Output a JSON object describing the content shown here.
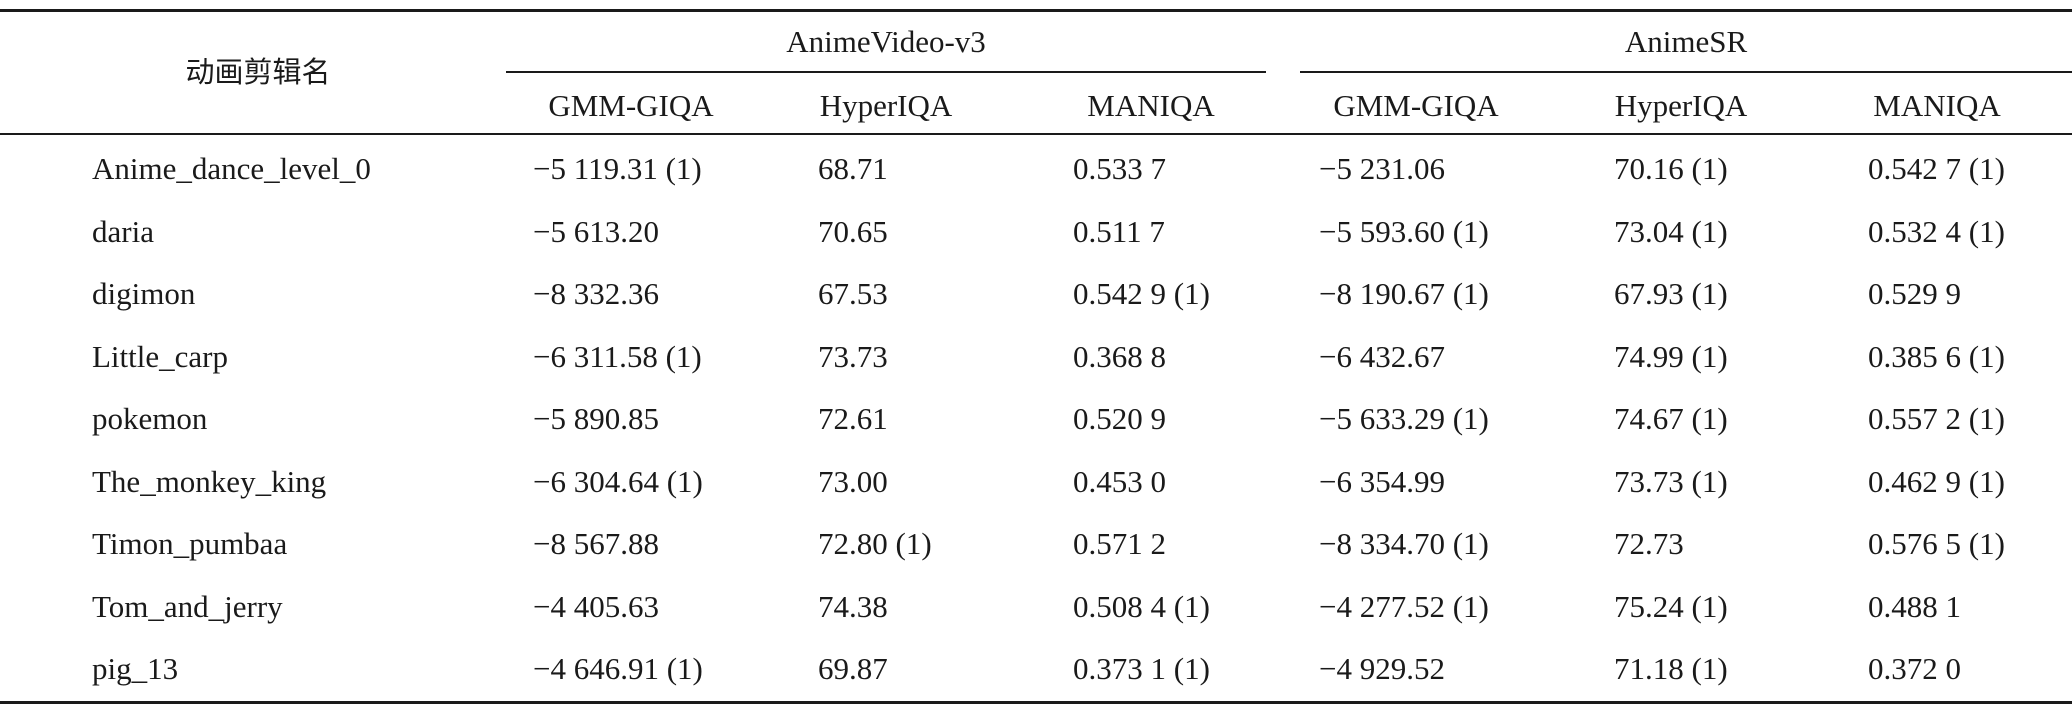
{
  "table": {
    "corner_label": "动画剪辑名",
    "groups": [
      {
        "label": "AnimeVideo-v3",
        "columns": [
          "GMM-GIQA",
          "HyperIQA",
          "MANIQA"
        ]
      },
      {
        "label": "AnimeSR",
        "columns": [
          "GMM-GIQA",
          "HyperIQA",
          "MANIQA"
        ]
      }
    ],
    "rows": [
      {
        "name": "Anime_dance_level_0",
        "values": [
          "−5 119.31 (1)",
          "68.71",
          "0.533 7",
          "−5 231.06",
          "70.16 (1)",
          "0.542 7 (1)"
        ]
      },
      {
        "name": "daria",
        "values": [
          "−5 613.20",
          "70.65",
          "0.511 7",
          "−5 593.60 (1)",
          "73.04 (1)",
          "0.532 4 (1)"
        ]
      },
      {
        "name": "digimon",
        "values": [
          "−8 332.36",
          "67.53",
          "0.542 9 (1)",
          "−8 190.67 (1)",
          "67.93 (1)",
          "0.529 9"
        ]
      },
      {
        "name": "Little_carp",
        "values": [
          "−6 311.58 (1)",
          "73.73",
          "0.368 8",
          "−6 432.67",
          "74.99 (1)",
          "0.385 6 (1)"
        ]
      },
      {
        "name": "pokemon",
        "values": [
          "−5 890.85",
          "72.61",
          "0.520 9",
          "−5 633.29 (1)",
          "74.67 (1)",
          "0.557 2 (1)"
        ]
      },
      {
        "name": "The_monkey_king",
        "values": [
          "−6 304.64 (1)",
          "73.00",
          "0.453 0",
          "−6 354.99",
          "73.73 (1)",
          "0.462 9 (1)"
        ]
      },
      {
        "name": "Timon_pumbaa",
        "values": [
          "−8 567.88",
          "72.80 (1)",
          "0.571 2",
          "−8 334.70 (1)",
          "72.73",
          "0.576 5 (1)"
        ]
      },
      {
        "name": "Tom_and_jerry",
        "values": [
          "−4 405.63",
          "74.38",
          "0.508 4 (1)",
          "−4 277.52 (1)",
          "75.24 (1)",
          "0.488 1"
        ]
      },
      {
        "name": "pig_13",
        "values": [
          "−4 646.91 (1)",
          "69.87",
          "0.373 1 (1)",
          "−4 929.52",
          "71.18 (1)",
          "0.372 0"
        ]
      }
    ]
  }
}
